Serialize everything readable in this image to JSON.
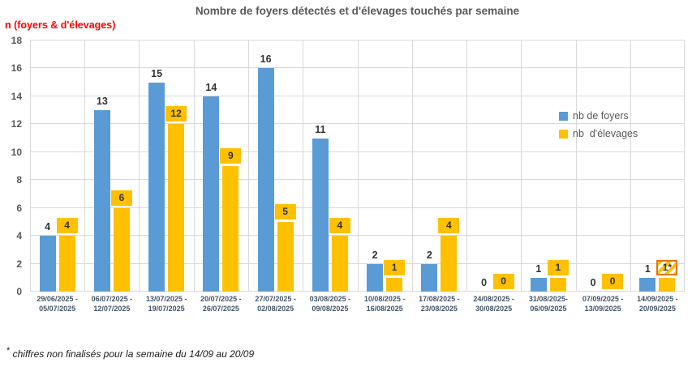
{
  "chart": {
    "title": "Nombre de foyers détectés et d'élevages touchés par semaine",
    "y_axis_title": "n (foyers & d'élevages)",
    "footnote_star": "*",
    "footnote_text": " chiffres non finalisés pour la semaine du 14/09 au 20/09",
    "colors": {
      "foyers_blue": "#5B9BD5",
      "elevages_yellow": "#FFC000",
      "axis_title_red": "#FF0000",
      "gridline": "#D9D9D9",
      "title_gray": "#595959",
      "hatch_border_orange": "#E8740C"
    }
  },
  "chart_data": {
    "type": "bar",
    "title": "Nombre de foyers détectés et d'élevages touchés par semaine",
    "xlabel": "",
    "ylabel": "n (foyers & d'élevages)",
    "ylim": [
      0,
      18
    ],
    "ytick_step": 2,
    "grid": true,
    "legend_position": "right-inside",
    "categories": [
      [
        "29/06/2025 -",
        "05/07/2025"
      ],
      [
        "06/07/2025 -",
        "12/07/2025"
      ],
      [
        "13/07/2025 -",
        "19/07/2025"
      ],
      [
        "20/07/2025 -",
        "26/07/2025"
      ],
      [
        "27/07/2025 -",
        "02/08/2025"
      ],
      [
        "03/08/2025 -",
        "09/08/2025"
      ],
      [
        "10/08/2025 -",
        "16/08/2025"
      ],
      [
        "17/08/2025 -",
        "23/08/2025"
      ],
      [
        "24/08/2025 -",
        "30/08/2025"
      ],
      [
        "31/08/2025-",
        "06/09/2025"
      ],
      [
        "07/09/2025 -",
        "13/09/2025"
      ],
      [
        "14/09/2025 -",
        "20/09/2025"
      ]
    ],
    "series": [
      {
        "name": "nb de foyers",
        "color": "#5B9BD5",
        "values": [
          4,
          13,
          15,
          14,
          16,
          11,
          2,
          2,
          0,
          1,
          0,
          1
        ],
        "labels": [
          "4",
          "13",
          "15",
          "14",
          "16",
          "11",
          "2",
          "2",
          "0",
          "1",
          "0",
          "1"
        ]
      },
      {
        "name": "nb  d'élevages",
        "color": "#FFC000",
        "values": [
          4,
          6,
          12,
          9,
          5,
          4,
          1,
          4,
          0,
          1,
          0,
          1
        ],
        "labels": [
          "4",
          "6",
          "12",
          "9",
          "5",
          "4",
          "1",
          "4",
          "0",
          "1",
          "0",
          "1*"
        ],
        "hatched_label_index": 11
      }
    ]
  }
}
